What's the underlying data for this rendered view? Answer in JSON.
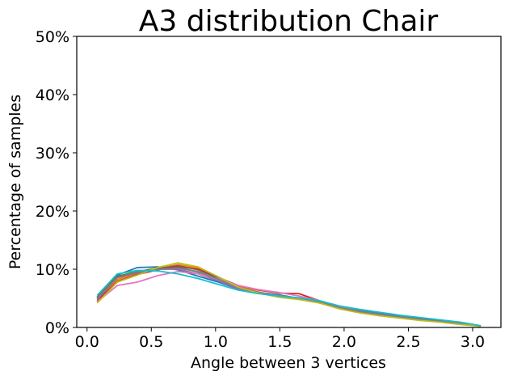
{
  "chart_data": {
    "type": "line",
    "title": "A3 distribution Chair",
    "xlabel": "Angle between 3 vertices",
    "ylabel": "Percentage of samples",
    "xlim": [
      -0.08,
      3.22
    ],
    "ylim": [
      0,
      50
    ],
    "xticks": [
      0.0,
      0.5,
      1.0,
      1.5,
      2.0,
      2.5,
      3.0
    ],
    "xtick_labels": [
      "0.0",
      "0.5",
      "1.0",
      "1.5",
      "2.0",
      "2.5",
      "3.0"
    ],
    "yticks": [
      0,
      10,
      20,
      30,
      40,
      50
    ],
    "ytick_labels": [
      "0%",
      "10%",
      "20%",
      "30%",
      "40%",
      "50%"
    ],
    "grid": false,
    "legend": "none",
    "x": [
      0.0785,
      0.2356,
      0.3927,
      0.5498,
      0.7069,
      0.864,
      1.0211,
      1.1781,
      1.3352,
      1.4923,
      1.6494,
      1.8065,
      1.9635,
      2.1206,
      2.2777,
      2.4348,
      2.5919,
      2.749,
      2.9061,
      3.0631
    ],
    "series": [
      {
        "color": "#1f77b4",
        "values": [
          5.0,
          9.0,
          10.3,
          10.4,
          9.9,
          8.8,
          7.8,
          6.6,
          6.0,
          5.6,
          5.0,
          4.5,
          3.6,
          3.0,
          2.5,
          2.0,
          1.6,
          1.2,
          0.8,
          0.3
        ]
      },
      {
        "color": "#ff7f0e",
        "values": [
          4.5,
          8.2,
          9.3,
          10.1,
          10.8,
          10.2,
          8.6,
          7.0,
          6.1,
          5.4,
          4.9,
          4.3,
          3.3,
          2.6,
          2.1,
          1.7,
          1.3,
          1.0,
          0.6,
          0.2
        ]
      },
      {
        "color": "#2ca02c",
        "values": [
          5.2,
          8.8,
          9.6,
          10.2,
          10.4,
          9.5,
          8.3,
          6.8,
          6.0,
          5.5,
          5.0,
          4.4,
          3.4,
          2.8,
          2.3,
          1.8,
          1.4,
          1.0,
          0.7,
          0.2
        ]
      },
      {
        "color": "#d62728",
        "values": [
          4.6,
          7.9,
          9.1,
          9.9,
          10.5,
          10.0,
          8.6,
          7.2,
          6.4,
          5.9,
          5.8,
          4.6,
          3.5,
          2.8,
          2.2,
          1.8,
          1.4,
          1.0,
          0.7,
          0.2
        ]
      },
      {
        "color": "#9467bd",
        "values": [
          4.8,
          8.5,
          9.4,
          10.0,
          10.0,
          9.2,
          8.0,
          6.6,
          5.9,
          5.4,
          4.9,
          4.4,
          3.4,
          2.8,
          2.3,
          1.8,
          1.4,
          1.0,
          0.7,
          0.2
        ]
      },
      {
        "color": "#8c564b",
        "values": [
          5.1,
          8.7,
          9.5,
          10.1,
          10.6,
          9.9,
          8.5,
          6.9,
          6.0,
          5.4,
          5.0,
          4.4,
          3.4,
          2.7,
          2.2,
          1.7,
          1.3,
          1.0,
          0.6,
          0.2
        ]
      },
      {
        "color": "#e377c2",
        "values": [
          4.4,
          7.2,
          7.8,
          8.9,
          9.6,
          9.2,
          8.4,
          7.2,
          6.5,
          6.0,
          5.4,
          4.6,
          3.5,
          2.8,
          2.2,
          1.8,
          1.4,
          1.0,
          0.7,
          0.2
        ]
      },
      {
        "color": "#7f7f7f",
        "values": [
          5.0,
          8.6,
          9.5,
          10.0,
          10.2,
          9.6,
          8.3,
          6.8,
          6.0,
          5.5,
          5.0,
          4.4,
          3.4,
          2.8,
          2.2,
          1.8,
          1.4,
          1.0,
          0.7,
          0.2
        ]
      },
      {
        "color": "#bcbd22",
        "values": [
          4.2,
          7.8,
          9.0,
          10.3,
          11.1,
          10.4,
          8.7,
          6.9,
          5.9,
          5.2,
          4.8,
          4.2,
          3.2,
          2.5,
          2.0,
          1.6,
          1.2,
          0.9,
          0.5,
          0.2
        ]
      },
      {
        "color": "#17becf",
        "values": [
          5.5,
          9.2,
          9.8,
          9.7,
          9.2,
          8.4,
          7.4,
          6.4,
          5.8,
          5.4,
          5.1,
          4.6,
          3.7,
          3.1,
          2.6,
          2.1,
          1.7,
          1.3,
          0.9,
          0.3
        ]
      }
    ]
  }
}
